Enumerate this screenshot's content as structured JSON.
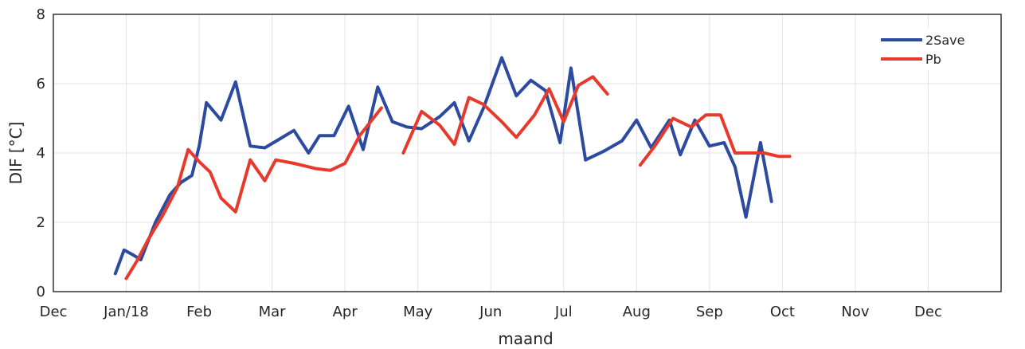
{
  "chart_data": {
    "type": "line",
    "title": "",
    "xlabel": "maand",
    "ylabel": "DIF [°C]",
    "ylim": [
      0,
      8
    ],
    "yticks": [
      0,
      2,
      4,
      6,
      8
    ],
    "xlim": [
      -1,
      12
    ],
    "xticks": [
      {
        "value": -1,
        "label": "Dec"
      },
      {
        "value": 0,
        "label": "Jan/18"
      },
      {
        "value": 1,
        "label": "Feb"
      },
      {
        "value": 2,
        "label": "Mar"
      },
      {
        "value": 3,
        "label": "Apr"
      },
      {
        "value": 4,
        "label": "May"
      },
      {
        "value": 5,
        "label": "Jun"
      },
      {
        "value": 6,
        "label": "Jul"
      },
      {
        "value": 7,
        "label": "Aug"
      },
      {
        "value": 8,
        "label": "Sep"
      },
      {
        "value": 9,
        "label": "Oct"
      },
      {
        "value": 10,
        "label": "Nov"
      },
      {
        "value": 11,
        "label": "Dec"
      }
    ],
    "grid": true,
    "legend_position": "top-right",
    "series": [
      {
        "name": "2Save",
        "color": "#2b4aa0",
        "segments": [
          [
            [
              -0.15,
              0.52
            ],
            [
              -0.03,
              1.2
            ],
            [
              0.1,
              1.05
            ],
            [
              0.2,
              0.92
            ],
            [
              0.4,
              2.0
            ],
            [
              0.6,
              2.8
            ],
            [
              0.75,
              3.15
            ],
            [
              0.9,
              3.35
            ],
            [
              1.0,
              4.2
            ],
            [
              1.1,
              5.45
            ],
            [
              1.3,
              4.95
            ],
            [
              1.5,
              6.05
            ],
            [
              1.7,
              4.2
            ],
            [
              1.9,
              4.15
            ],
            [
              2.1,
              4.4
            ],
            [
              2.3,
              4.65
            ],
            [
              2.5,
              4.0
            ],
            [
              2.65,
              4.5
            ],
            [
              2.85,
              4.5
            ],
            [
              3.05,
              5.35
            ],
            [
              3.25,
              4.1
            ],
            [
              3.45,
              5.9
            ],
            [
              3.65,
              4.9
            ],
            [
              3.85,
              4.75
            ],
            [
              4.05,
              4.7
            ],
            [
              4.3,
              5.05
            ],
            [
              4.5,
              5.45
            ],
            [
              4.7,
              4.35
            ],
            [
              4.9,
              5.3
            ],
            [
              5.15,
              6.75
            ],
            [
              5.35,
              5.65
            ],
            [
              5.55,
              6.1
            ],
            [
              5.75,
              5.8
            ],
            [
              5.95,
              4.3
            ],
            [
              6.1,
              6.45
            ],
            [
              6.3,
              3.8
            ],
            [
              6.55,
              4.05
            ],
            [
              6.8,
              4.35
            ],
            [
              7.0,
              4.95
            ],
            [
              7.2,
              4.15
            ],
            [
              7.45,
              4.95
            ],
            [
              7.6,
              3.95
            ],
            [
              7.8,
              4.95
            ],
            [
              8.0,
              4.2
            ],
            [
              8.2,
              4.3
            ],
            [
              8.35,
              3.6
            ],
            [
              8.5,
              2.15
            ],
            [
              8.7,
              4.3
            ],
            [
              8.85,
              2.6
            ]
          ]
        ]
      },
      {
        "name": "Pb",
        "color": "#e83a2c",
        "segments": [
          [
            [
              0.0,
              0.38
            ],
            [
              0.15,
              0.9
            ],
            [
              0.3,
              1.5
            ],
            [
              0.5,
              2.2
            ],
            [
              0.7,
              3.0
            ],
            [
              0.85,
              4.1
            ],
            [
              1.0,
              3.75
            ],
            [
              1.15,
              3.45
            ],
            [
              1.3,
              2.7
            ],
            [
              1.5,
              2.3
            ],
            [
              1.7,
              3.8
            ],
            [
              1.9,
              3.2
            ],
            [
              2.05,
              3.8
            ],
            [
              2.3,
              3.7
            ],
            [
              2.6,
              3.55
            ],
            [
              2.8,
              3.5
            ],
            [
              3.0,
              3.7
            ],
            [
              3.2,
              4.5
            ],
            [
              3.5,
              5.3
            ]
          ],
          [
            [
              3.8,
              4.0
            ],
            [
              4.05,
              5.2
            ],
            [
              4.3,
              4.8
            ],
            [
              4.5,
              4.25
            ],
            [
              4.7,
              5.6
            ],
            [
              4.9,
              5.4
            ],
            [
              5.15,
              4.9
            ],
            [
              5.35,
              4.45
            ],
            [
              5.6,
              5.1
            ],
            [
              5.8,
              5.85
            ],
            [
              6.0,
              4.9
            ],
            [
              6.2,
              5.95
            ],
            [
              6.4,
              6.2
            ],
            [
              6.6,
              5.7
            ]
          ],
          [
            [
              7.05,
              3.65
            ],
            [
              7.25,
              4.2
            ],
            [
              7.5,
              5.0
            ],
            [
              7.75,
              4.75
            ],
            [
              7.95,
              5.1
            ],
            [
              8.15,
              5.1
            ],
            [
              8.35,
              4.0
            ],
            [
              8.55,
              4.0
            ],
            [
              8.75,
              4.0
            ],
            [
              8.95,
              3.9
            ],
            [
              9.1,
              3.9
            ]
          ]
        ]
      }
    ]
  }
}
